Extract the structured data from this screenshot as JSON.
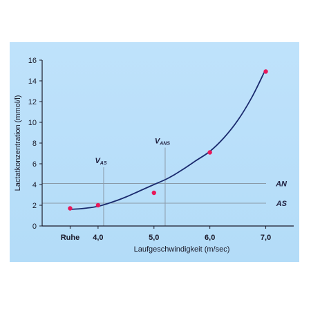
{
  "chart_data": {
    "type": "scatter",
    "xlabel": "Laufgeschwindigkeit (m/sec)",
    "ylabel": "Lactatkonzentration (mmol/l)",
    "ylim": [
      0,
      16
    ],
    "xlim": [
      3.0,
      7.5
    ],
    "yticks": [
      "0",
      "2",
      "4",
      "6",
      "8",
      "10",
      "12",
      "14",
      "16"
    ],
    "xticks": [
      {
        "x": 3.5,
        "label": "Ruhe"
      },
      {
        "x": 4.0,
        "label": "4,0"
      },
      {
        "x": 5.0,
        "label": "5,0"
      },
      {
        "x": 6.0,
        "label": "6,0"
      },
      {
        "x": 7.0,
        "label": "7,0"
      }
    ],
    "grid": false,
    "series": [
      {
        "points": [
          {
            "x": 3.5,
            "y": 1.7
          },
          {
            "x": 4.0,
            "y": 2.0
          },
          {
            "x": 5.0,
            "y": 3.2
          },
          {
            "x": 6.0,
            "y": 7.1
          },
          {
            "x": 7.0,
            "y": 14.9
          }
        ],
        "color": "#e8185a"
      }
    ],
    "fit_curve": {
      "color": "#1a2a6e",
      "x": [
        3.5,
        3.75,
        4.0,
        4.25,
        4.5,
        4.75,
        5.0,
        5.25,
        5.5,
        5.75,
        6.0,
        6.25,
        6.5,
        6.75,
        6.97
      ],
      "y": [
        1.6,
        1.7,
        1.9,
        2.3,
        2.8,
        3.4,
        4.0,
        4.6,
        5.4,
        6.3,
        7.2,
        8.5,
        10.2,
        12.4,
        14.8
      ]
    },
    "reference_lines": {
      "horizontal": [
        {
          "label": "AN",
          "y": 4.1
        },
        {
          "label": "AS",
          "y": 2.2
        }
      ],
      "vertical": [
        {
          "base": "V",
          "sub": "AS",
          "x": 4.1
        },
        {
          "base": "V",
          "sub": "ANS",
          "x": 5.2
        }
      ]
    },
    "colors": {
      "background": "#bfe2fb",
      "axis": "#1a1a2a",
      "reference": "#8a9aa8"
    }
  }
}
